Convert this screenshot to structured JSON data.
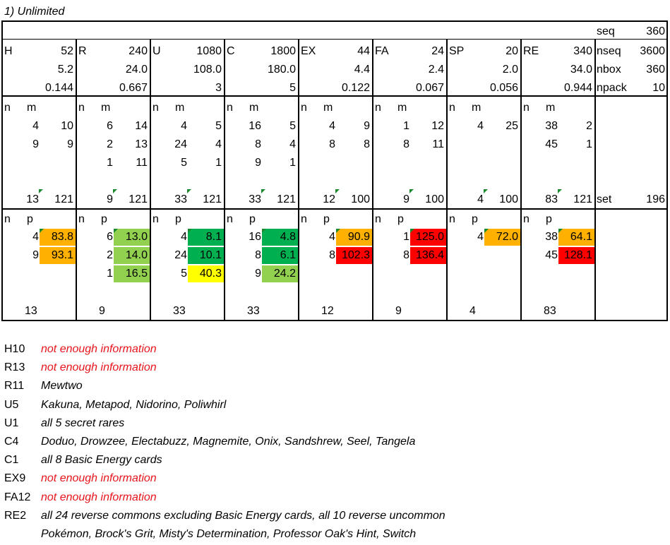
{
  "heading": "1) Unlimited",
  "summary": {
    "seq_label": "seq",
    "seq_value": "360",
    "nseq_label": "nseq",
    "nseq_value": "3600",
    "nbox_label": "nbox",
    "nbox_value": "360",
    "npack_label": "npack",
    "npack_value": "10",
    "set_label": "set",
    "set_value": "196"
  },
  "sub_headers": {
    "n": "n",
    "m": "m",
    "p": "p"
  },
  "columns": [
    {
      "code": "H",
      "total": "52",
      "per_box": "5.2",
      "per_pack": "0.144",
      "m_rows": [
        [
          "4",
          "10"
        ],
        [
          "9",
          "9"
        ]
      ],
      "m_n_total": "13",
      "m_total": "121",
      "p_rows": [
        {
          "n": "4",
          "p": "83.8",
          "color": "#ffb000"
        },
        {
          "n": "9",
          "p": "93.1",
          "color": "#ffb000"
        }
      ],
      "p_n_total": "13"
    },
    {
      "code": "R",
      "total": "240",
      "per_box": "24.0",
      "per_pack": "0.667",
      "m_rows": [
        [
          "6",
          "14"
        ],
        [
          "2",
          "13"
        ],
        [
          "1",
          "11"
        ]
      ],
      "m_n_total": "9",
      "m_total": "121",
      "p_rows": [
        {
          "n": "6",
          "p": "13.0",
          "color": "#92d050"
        },
        {
          "n": "2",
          "p": "14.0",
          "color": "#92d050"
        },
        {
          "n": "1",
          "p": "16.5",
          "color": "#92d050"
        }
      ],
      "p_n_total": "9"
    },
    {
      "code": "U",
      "total": "1080",
      "per_box": "108.0",
      "per_pack": "3",
      "m_rows": [
        [
          "4",
          "5"
        ],
        [
          "24",
          "4"
        ],
        [
          "5",
          "1"
        ]
      ],
      "m_n_total": "33",
      "m_total": "121",
      "p_rows": [
        {
          "n": "4",
          "p": "8.1",
          "color": "#00b050"
        },
        {
          "n": "24",
          "p": "10.1",
          "color": "#00b050"
        },
        {
          "n": "5",
          "p": "40.3",
          "color": "#ffff00"
        }
      ],
      "p_n_total": "33"
    },
    {
      "code": "C",
      "total": "1800",
      "per_box": "180.0",
      "per_pack": "5",
      "m_rows": [
        [
          "16",
          "5"
        ],
        [
          "8",
          "4"
        ],
        [
          "9",
          "1"
        ]
      ],
      "m_n_total": "33",
      "m_total": "121",
      "p_rows": [
        {
          "n": "16",
          "p": "4.8",
          "color": "#00b050"
        },
        {
          "n": "8",
          "p": "6.1",
          "color": "#00b050"
        },
        {
          "n": "9",
          "p": "24.2",
          "color": "#92d050"
        }
      ],
      "p_n_total": "33"
    },
    {
      "code": "EX",
      "total": "44",
      "per_box": "4.4",
      "per_pack": "0.122",
      "m_rows": [
        [
          "4",
          "9"
        ],
        [
          "8",
          "8"
        ]
      ],
      "m_n_total": "12",
      "m_total": "100",
      "p_rows": [
        {
          "n": "4",
          "p": "90.9",
          "color": "#ffb000"
        },
        {
          "n": "8",
          "p": "102.3",
          "color": "#ff0000"
        }
      ],
      "p_n_total": "12"
    },
    {
      "code": "FA",
      "total": "24",
      "per_box": "2.4",
      "per_pack": "0.067",
      "m_rows": [
        [
          "1",
          "12"
        ],
        [
          "8",
          "11"
        ]
      ],
      "m_n_total": "9",
      "m_total": "100",
      "p_rows": [
        {
          "n": "1",
          "p": "125.0",
          "color": "#ff0000"
        },
        {
          "n": "8",
          "p": "136.4",
          "color": "#ff0000"
        }
      ],
      "p_n_total": "9"
    },
    {
      "code": "SP",
      "total": "20",
      "per_box": "2.0",
      "per_pack": "0.056",
      "m_rows": [
        [
          "4",
          "25"
        ]
      ],
      "m_n_total": "4",
      "m_total": "100",
      "p_rows": [
        {
          "n": "4",
          "p": "72.0",
          "color": "#ffb000"
        }
      ],
      "p_n_total": "4"
    },
    {
      "code": "RE",
      "total": "340",
      "per_box": "34.0",
      "per_pack": "0.944",
      "m_rows": [
        [
          "38",
          "2"
        ],
        [
          "45",
          "1"
        ]
      ],
      "m_n_total": "83",
      "m_total": "121",
      "p_rows": [
        {
          "n": "38",
          "p": "64.1",
          "color": "#ffb000"
        },
        {
          "n": "45",
          "p": "128.1",
          "color": "#ff0000"
        }
      ],
      "p_n_total": "83"
    }
  ],
  "notes": [
    {
      "key": "H10",
      "text": "not enough information",
      "red": true
    },
    {
      "key": "R13",
      "text": "not enough information",
      "red": true
    },
    {
      "key": "R11",
      "text": "Mewtwo",
      "red": false
    },
    {
      "key": "U5",
      "text": "Kakuna, Metapod, Nidorino, Poliwhirl",
      "red": false
    },
    {
      "key": "U1",
      "text": "all 5 secret rares",
      "red": false
    },
    {
      "key": "C4",
      "text": "Doduo, Drowzee, Electabuzz, Magnemite, Onix, Sandshrew, Seel, Tangela",
      "red": false
    },
    {
      "key": "C1",
      "text": "all 8 Basic Energy cards",
      "red": false
    },
    {
      "key": "EX9",
      "text": "not enough information",
      "red": true
    },
    {
      "key": "FA12",
      "text": "not enough information",
      "red": true
    },
    {
      "key": "RE2",
      "text": "all 24 reverse commons excluding Basic Energy cards, all 10 reverse uncommon",
      "red": false
    }
  ],
  "notes_continuation": "Pokémon, Brock's Grit, Misty's Determination, Professor Oak's Hint, Switch"
}
